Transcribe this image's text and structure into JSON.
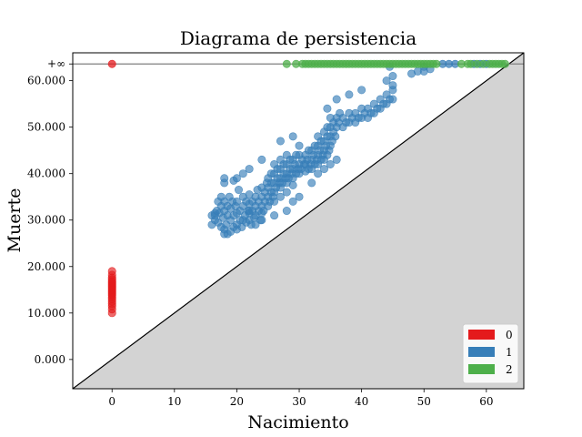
{
  "chart_data": {
    "type": "scatter",
    "title": "Diagrama de persistencia",
    "xlabel": "Nacimiento",
    "ylabel": "Muerte",
    "xlim": [
      -6.3,
      66
    ],
    "ylim": [
      -6.3,
      66
    ],
    "infinity_y": 63.6,
    "infinity_label": "+∞",
    "x_ticks": [
      0,
      10,
      20,
      30,
      40,
      50,
      60
    ],
    "x_tick_labels": [
      "0",
      "10",
      "20",
      "30",
      "40",
      "50",
      "60"
    ],
    "y_ticks": [
      0,
      10,
      20,
      30,
      40,
      50,
      60
    ],
    "y_tick_labels": [
      "0.000",
      "10.000",
      "20.000",
      "30.000",
      "40.000",
      "50.000",
      "60.000"
    ],
    "diagonal": true,
    "legend": {
      "position": "lower-right",
      "entries": [
        "0",
        "1",
        "2"
      ]
    },
    "series": [
      {
        "name": "0",
        "color": "#e41a1c",
        "points": [
          [
            0,
            10
          ],
          [
            0,
            10.8
          ],
          [
            0,
            11.5
          ],
          [
            0,
            12
          ],
          [
            0,
            12.5
          ],
          [
            0,
            13
          ],
          [
            0,
            13.4
          ],
          [
            0,
            13.8
          ],
          [
            0,
            14.1
          ],
          [
            0,
            14.4
          ],
          [
            0,
            14.7
          ],
          [
            0,
            15
          ],
          [
            0,
            15.3
          ],
          [
            0,
            15.6
          ],
          [
            0,
            15.9
          ],
          [
            0,
            16.2
          ],
          [
            0,
            16.5
          ],
          [
            0,
            16.8
          ],
          [
            0,
            17.2
          ],
          [
            0,
            17.6
          ],
          [
            0,
            18.2
          ],
          [
            0,
            19
          ]
        ],
        "infinite_births": [
          0
        ]
      },
      {
        "name": "1",
        "color": "#377eb8",
        "points": [
          [
            16.5,
            30
          ],
          [
            16.5,
            31
          ],
          [
            16.8,
            32
          ],
          [
            17,
            29.5
          ],
          [
            17.2,
            31.5
          ],
          [
            17.5,
            33
          ],
          [
            17.5,
            28.5
          ],
          [
            17.8,
            30.5
          ],
          [
            18,
            28
          ],
          [
            18,
            27
          ],
          [
            18,
            32
          ],
          [
            18,
            34
          ],
          [
            18.3,
            29
          ],
          [
            18.5,
            31
          ],
          [
            18.5,
            33
          ],
          [
            18.8,
            35
          ],
          [
            19,
            27.5
          ],
          [
            19,
            30
          ],
          [
            19,
            32.5
          ],
          [
            19.3,
            34
          ],
          [
            19.5,
            28.5
          ],
          [
            19.5,
            31
          ],
          [
            19.8,
            33
          ],
          [
            20,
            29
          ],
          [
            20,
            31.5
          ],
          [
            20,
            34
          ],
          [
            20.3,
            36.5
          ],
          [
            20.5,
            30
          ],
          [
            20.5,
            32
          ],
          [
            20.8,
            28.5
          ],
          [
            21,
            30
          ],
          [
            21,
            33
          ],
          [
            21,
            35
          ],
          [
            21.3,
            31
          ],
          [
            21.5,
            29.5
          ],
          [
            21.5,
            34
          ],
          [
            21.8,
            32
          ],
          [
            22,
            30
          ],
          [
            22,
            31.5
          ],
          [
            22,
            33.5
          ],
          [
            22,
            35.5
          ],
          [
            22.3,
            29
          ],
          [
            22.5,
            32
          ],
          [
            22.5,
            34
          ],
          [
            22.8,
            30.5
          ],
          [
            23,
            31
          ],
          [
            23,
            33
          ],
          [
            23,
            35
          ],
          [
            23.3,
            36.5
          ],
          [
            23.5,
            32
          ],
          [
            23.5,
            34
          ],
          [
            23.8,
            30
          ],
          [
            24,
            31.5
          ],
          [
            24,
            33
          ],
          [
            24,
            35
          ],
          [
            24,
            37
          ],
          [
            24.3,
            32
          ],
          [
            24.5,
            34
          ],
          [
            24.5,
            36
          ],
          [
            24.8,
            38
          ],
          [
            25,
            33
          ],
          [
            25,
            35
          ],
          [
            25,
            37
          ],
          [
            25,
            39
          ],
          [
            25.3,
            34
          ],
          [
            25.5,
            36
          ],
          [
            25.5,
            38
          ],
          [
            25.5,
            40
          ],
          [
            25.8,
            35
          ],
          [
            26,
            34
          ],
          [
            26,
            36
          ],
          [
            26,
            38
          ],
          [
            26,
            40
          ],
          [
            26,
            42
          ],
          [
            26.3,
            37
          ],
          [
            26.5,
            39
          ],
          [
            26.5,
            41
          ],
          [
            26.8,
            38
          ],
          [
            27,
            35
          ],
          [
            27,
            37
          ],
          [
            27,
            39
          ],
          [
            27,
            41
          ],
          [
            27,
            43
          ],
          [
            27.3,
            38
          ],
          [
            27.5,
            40
          ],
          [
            27.5,
            42
          ],
          [
            27.8,
            39
          ],
          [
            28,
            36
          ],
          [
            28,
            38
          ],
          [
            28,
            40
          ],
          [
            28,
            42
          ],
          [
            28,
            44
          ],
          [
            28.3,
            39
          ],
          [
            28.5,
            41
          ],
          [
            28.5,
            43
          ],
          [
            28.8,
            40
          ],
          [
            29,
            37.5
          ],
          [
            29,
            39
          ],
          [
            29,
            41
          ],
          [
            29,
            43
          ],
          [
            29.3,
            42
          ],
          [
            29.5,
            40
          ],
          [
            29.5,
            44
          ],
          [
            29.8,
            41
          ],
          [
            30,
            40
          ],
          [
            30,
            42
          ],
          [
            30,
            44
          ],
          [
            30.3,
            41
          ],
          [
            30.5,
            43
          ],
          [
            30.8,
            42
          ],
          [
            31,
            40.5
          ],
          [
            31,
            42
          ],
          [
            31,
            44
          ],
          [
            31.3,
            43
          ],
          [
            31.5,
            41
          ],
          [
            31.5,
            45
          ],
          [
            31.8,
            42
          ],
          [
            32,
            41
          ],
          [
            32,
            43
          ],
          [
            32,
            45
          ],
          [
            32.3,
            44
          ],
          [
            32.5,
            42
          ],
          [
            32.5,
            46
          ],
          [
            32.8,
            43
          ],
          [
            33,
            42
          ],
          [
            33,
            44
          ],
          [
            33,
            46
          ],
          [
            33,
            48
          ],
          [
            33.3,
            45
          ],
          [
            33.5,
            43
          ],
          [
            33.5,
            47
          ],
          [
            33.8,
            44
          ],
          [
            34,
            43
          ],
          [
            34,
            45
          ],
          [
            34,
            47
          ],
          [
            34,
            49
          ],
          [
            34.3,
            46
          ],
          [
            34.5,
            44
          ],
          [
            34.5,
            48
          ],
          [
            34.5,
            50
          ],
          [
            34.8,
            45
          ],
          [
            35,
            46
          ],
          [
            35,
            48
          ],
          [
            35,
            50
          ],
          [
            35,
            52
          ],
          [
            35.3,
            47
          ],
          [
            35.5,
            49
          ],
          [
            35.5,
            51
          ],
          [
            35.8,
            48
          ],
          [
            36,
            50
          ],
          [
            36,
            52
          ],
          [
            36.3,
            51
          ],
          [
            36.5,
            53
          ],
          [
            37,
            50
          ],
          [
            37,
            52
          ],
          [
            37.5,
            51
          ],
          [
            38,
            51
          ],
          [
            38,
            53
          ],
          [
            38.5,
            52
          ],
          [
            39,
            51
          ],
          [
            39,
            53
          ],
          [
            39.5,
            52
          ],
          [
            40,
            52
          ],
          [
            40,
            54
          ],
          [
            40.5,
            53
          ],
          [
            41,
            52
          ],
          [
            41,
            54
          ],
          [
            41.5,
            53
          ],
          [
            42,
            53
          ],
          [
            42,
            55
          ],
          [
            42.5,
            54
          ],
          [
            43,
            54
          ],
          [
            43,
            56
          ],
          [
            43.5,
            55
          ],
          [
            44,
            55
          ],
          [
            44,
            57
          ],
          [
            44.5,
            56
          ],
          [
            45,
            56
          ],
          [
            45,
            58
          ],
          [
            34.5,
            54
          ],
          [
            36,
            56
          ],
          [
            38,
            57
          ],
          [
            40,
            58
          ],
          [
            44,
            60
          ],
          [
            44.5,
            63
          ],
          [
            45,
            61
          ],
          [
            45,
            59
          ],
          [
            48,
            61.5
          ],
          [
            49,
            62
          ],
          [
            50,
            63
          ],
          [
            50,
            62
          ],
          [
            51,
            62.5
          ],
          [
            30,
            46
          ],
          [
            29,
            48
          ],
          [
            27,
            47
          ],
          [
            24,
            43
          ],
          [
            22,
            41
          ],
          [
            21,
            40
          ],
          [
            20,
            39
          ],
          [
            18,
            38
          ],
          [
            18,
            39
          ],
          [
            19.5,
            38.5
          ],
          [
            16,
            31
          ],
          [
            16.5,
            31.5
          ],
          [
            17,
            34
          ],
          [
            17.5,
            35
          ],
          [
            16,
            29
          ],
          [
            18.5,
            27
          ],
          [
            20,
            28
          ],
          [
            22,
            32
          ],
          [
            24,
            30
          ],
          [
            23,
            29
          ],
          [
            26,
            31
          ],
          [
            28,
            32
          ],
          [
            29,
            34
          ],
          [
            30,
            35
          ],
          [
            32,
            38
          ],
          [
            33,
            40
          ],
          [
            34,
            41
          ],
          [
            35,
            42
          ],
          [
            36,
            43
          ]
        ],
        "infinite_births": [
          53,
          54,
          55,
          58,
          59,
          60
        ]
      },
      {
        "name": "2",
        "color": "#4daf4a",
        "points": [],
        "infinite_births": [
          28,
          29.5,
          30.5,
          31,
          31.5,
          32,
          32.5,
          33,
          33.5,
          34,
          34.5,
          35,
          35.5,
          36,
          36.5,
          37,
          37.5,
          38,
          38.5,
          39,
          39.5,
          40,
          40.5,
          41,
          41.5,
          42,
          42.5,
          43,
          43.5,
          44,
          44.5,
          45,
          45.5,
          46,
          46.5,
          47,
          47.5,
          48,
          48.5,
          49,
          49.5,
          50,
          50.5,
          51,
          51.5,
          52,
          56,
          57,
          57.5,
          58.5,
          59.5,
          60.5,
          61,
          61.5,
          62,
          62.5,
          63
        ]
      }
    ]
  }
}
